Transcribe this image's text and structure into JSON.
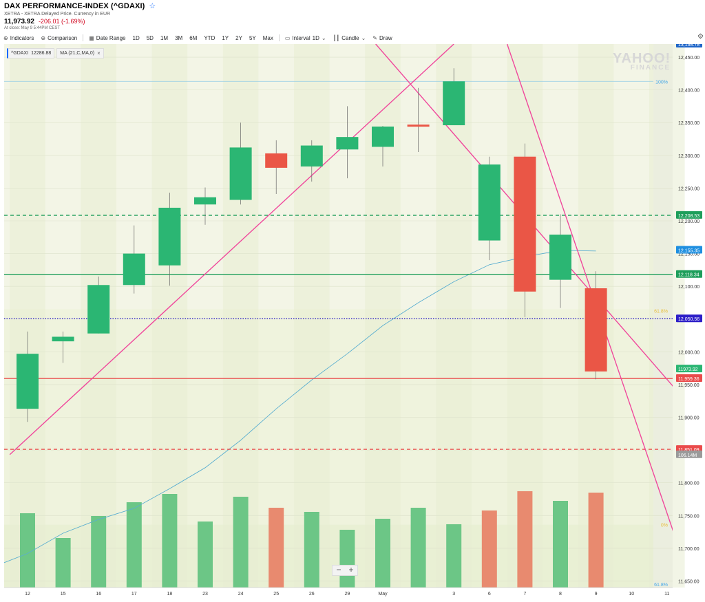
{
  "header": {
    "title": "DAX PERFORMANCE-INDEX (^GDAXI)",
    "subtitle": "XETRA - XETRA Delayed Price. Currency in EUR",
    "price": "11,973.92",
    "change": "-206.01 (-1.69%)",
    "close_note": "At close: May 9 5:44PM CEST"
  },
  "toolbar": {
    "indicators": "Indicators",
    "comparison": "Comparison",
    "date_range": "Date Range",
    "ranges": [
      "1D",
      "5D",
      "1M",
      "3M",
      "6M",
      "YTD",
      "1Y",
      "2Y",
      "5Y",
      "Max"
    ],
    "interval_label": "Interval",
    "interval_value": "1D",
    "candle": "Candle",
    "draw": "Draw"
  },
  "chips": {
    "symbol": "^GDAXI",
    "symbol_value": "12286.88",
    "ma": "MA (21,C,MA,0)"
  },
  "watermark": {
    "line1": "YAHOO!",
    "line2": "FINANCE"
  },
  "colors": {
    "up": "#2bb673",
    "down": "#ea5646",
    "ma": "#5aaed0",
    "trend": "#f0489c",
    "vol_up": "#6cc686",
    "vol_down": "#e88a6f"
  },
  "chart_data": {
    "type": "candlestick",
    "x_labels": [
      "12",
      "15",
      "16",
      "17",
      "18",
      "23",
      "24",
      "25",
      "26",
      "29",
      "May",
      "",
      "3",
      "6",
      "7",
      "8",
      "9",
      "10",
      "11"
    ],
    "candles": [
      {
        "o": 11913,
        "c": 11997,
        "h": 12031,
        "l": 11893
      },
      {
        "o": 12016,
        "c": 12023,
        "h": 12031,
        "l": 11983
      },
      {
        "o": 12028,
        "c": 12102,
        "h": 12115,
        "l": 12028
      },
      {
        "o": 12102,
        "c": 12150,
        "h": 12193,
        "l": 12089
      },
      {
        "o": 12132,
        "c": 12220,
        "h": 12243,
        "l": 12101
      },
      {
        "o": 12225,
        "c": 12236,
        "h": 12251,
        "l": 12194
      },
      {
        "o": 12232,
        "c": 12312,
        "h": 12350,
        "l": 12225
      },
      {
        "o": 12303,
        "c": 12281,
        "h": 12323,
        "l": 12241
      },
      {
        "o": 12283,
        "c": 12315,
        "h": 12323,
        "l": 12260
      },
      {
        "o": 12309,
        "c": 12328,
        "h": 12375,
        "l": 12265
      },
      {
        "o": 12313,
        "c": 12344,
        "h": 12345,
        "l": 12283
      },
      {
        "o": 12347,
        "c": 12344,
        "h": 12403,
        "l": 12305
      },
      {
        "o": 12346,
        "c": 12413,
        "h": 12433,
        "l": 12346
      },
      {
        "o": 12170,
        "c": 12286,
        "h": 12298,
        "l": 12140
      },
      {
        "o": 12298,
        "c": 12092,
        "h": 12318,
        "l": 12053
      },
      {
        "o": 12110,
        "c": 12179,
        "h": 12210,
        "l": 12067
      },
      {
        "o": 12097,
        "c": 11970,
        "h": 12123,
        "l": 11958
      }
    ],
    "volume_up": [
      true,
      true,
      true,
      true,
      true,
      true,
      true,
      false,
      true,
      true,
      true,
      true,
      true,
      false,
      false,
      true,
      false
    ],
    "volume": [
      0.54,
      0.36,
      0.52,
      0.62,
      0.68,
      0.48,
      0.66,
      0.58,
      0.55,
      0.42,
      0.5,
      0.58,
      0.46,
      0.56,
      0.7,
      0.63,
      0.69
    ],
    "ma_values": [
      11692,
      11723,
      11744,
      11761,
      11791,
      11823,
      11865,
      11913,
      11957,
      11997,
      12040,
      12075,
      12107,
      12133,
      12145,
      12155,
      12154
    ],
    "y_ticks": [
      11650,
      11700,
      11750,
      11800,
      11850,
      11900,
      11950,
      12000,
      12050,
      12100,
      12150,
      12200,
      12250,
      12300,
      12350,
      12400,
      12450
    ],
    "y_tick_labels": [
      "11,650.00",
      "11,700.00",
      "11,750.00",
      "11,800.00",
      "11,850.00",
      "11,900.00",
      "11,950.00",
      "12,000.00",
      "12,050.00",
      "12,100.00",
      "12,150.00",
      "12,200.00",
      "12,250.00",
      "12,300.00",
      "12,350.00",
      "12,400.00",
      "12,450.00"
    ],
    "ylim": [
      11640,
      12470
    ],
    "hlines": [
      {
        "value": 12208.53,
        "label": "12,208.53",
        "color": "#1e9e5b",
        "dash": "5,4"
      },
      {
        "value": 12118.34,
        "label": "12,118.34",
        "color": "#1e9e5b",
        "dash": ""
      },
      {
        "value": 12050.56,
        "label": "12,050.56",
        "color": "#2d1fc8",
        "dash": "1.5,2"
      },
      {
        "value": 11959.36,
        "label": "11,959.36",
        "color": "#ea4b4b",
        "dash": ""
      },
      {
        "value": 11851.09,
        "label": "11,851.09",
        "color": "#ea4b4b",
        "dash": "5,4"
      }
    ],
    "price_tags": [
      {
        "value": 12470,
        "label": "13,168.78",
        "color": "#1f66c8"
      },
      {
        "value": 12155.35,
        "label": "12,155.35",
        "color": "#1f8fe0"
      },
      {
        "value": 11973.92,
        "label": "11973.92",
        "color": "#2bb673"
      },
      {
        "value": 11843,
        "label": "106.14M",
        "color": "#9a9a9a"
      }
    ],
    "fib_labels": [
      {
        "value": 12413,
        "label": "100%",
        "color": "#46a8e8"
      },
      {
        "value": 12063,
        "label": "61.8%",
        "color": "#e8c040"
      },
      {
        "value": 11736,
        "label": "0%",
        "color": "#e8c040"
      },
      {
        "value": 11645,
        "label": "61.8%",
        "color": "#46a8e8"
      }
    ],
    "trendlines": [
      {
        "from": [
          -0.5,
          11843
        ],
        "to": [
          12.0,
          12470
        ]
      },
      {
        "from": [
          9.8,
          12470
        ],
        "to": [
          18.4,
          11933
        ]
      },
      {
        "from": [
          13.5,
          12470
        ],
        "to": [
          18.4,
          11690
        ]
      }
    ]
  }
}
